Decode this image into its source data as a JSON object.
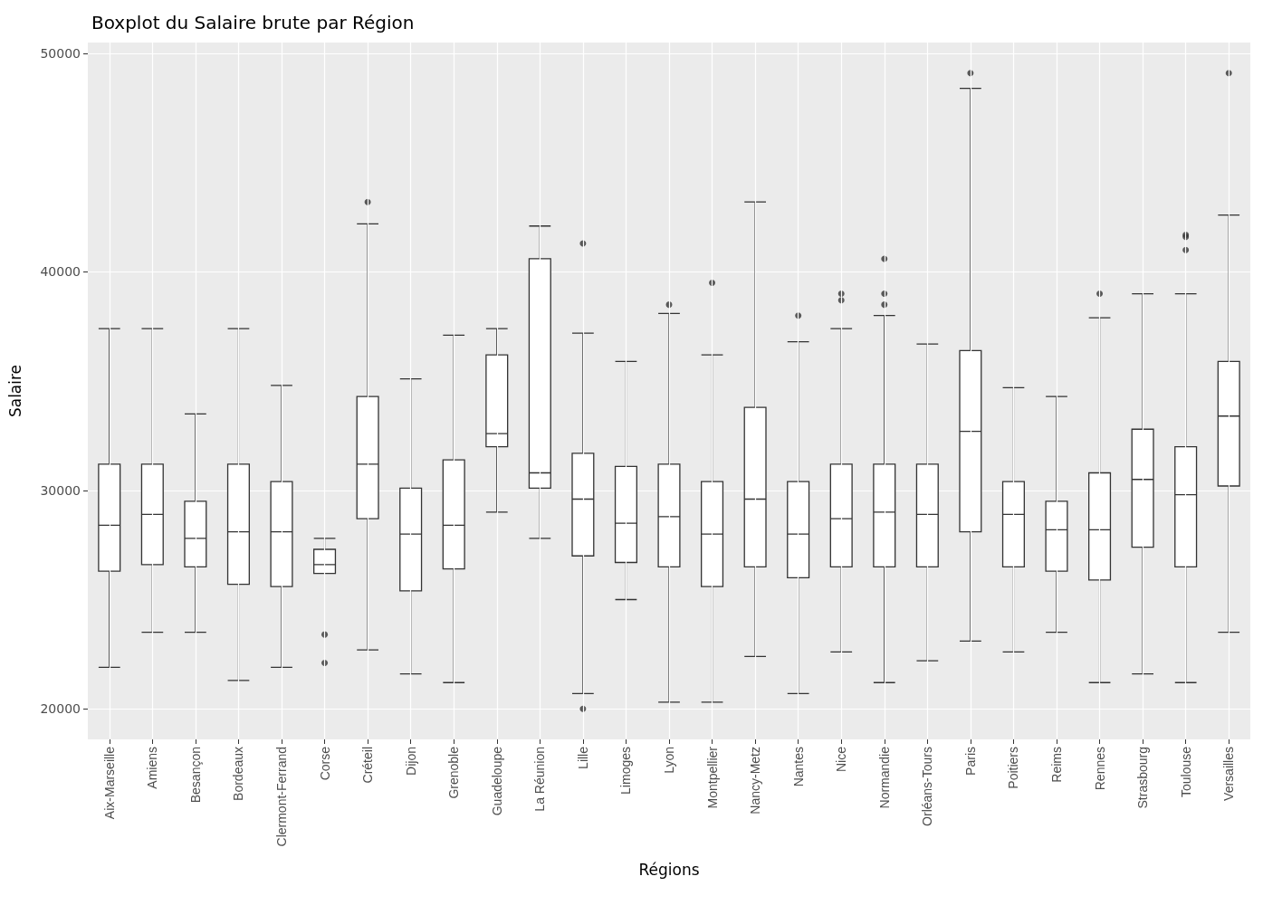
{
  "chart_data": {
    "type": "box",
    "title": "Boxplot du Salaire brute par Région",
    "xlabel": "Régions",
    "ylabel": "Salaire",
    "categories": [
      "Aix-Marseille",
      "Amiens",
      "Besançon",
      "Bordeaux",
      "Clermont-Ferrand",
      "Corse",
      "Créteil",
      "Dijon",
      "Grenoble",
      "Guadeloupe",
      "La Réunion",
      "Lille",
      "Limoges",
      "Lyon",
      "Montpellier",
      "Nancy-Metz",
      "Nantes",
      "Nice",
      "Normandie",
      "Orléans-Tours",
      "Paris",
      "Poitiers",
      "Reims",
      "Rennes",
      "Strasbourg",
      "Toulouse",
      "Versailles"
    ],
    "boxes": [
      {
        "low": 21900,
        "q1": 26300,
        "median": 28400,
        "q3": 31200,
        "high": 37400
      },
      {
        "low": 23500,
        "q1": 26600,
        "median": 28900,
        "q3": 31200,
        "high": 37400
      },
      {
        "low": 23500,
        "q1": 26500,
        "median": 27800,
        "q3": 29500,
        "high": 33500
      },
      {
        "low": 21300,
        "q1": 25700,
        "median": 28100,
        "q3": 31200,
        "high": 37400
      },
      {
        "low": 21900,
        "q1": 25600,
        "median": 28100,
        "q3": 30400,
        "high": 34800
      },
      {
        "low": 26200,
        "q1": 26200,
        "median": 26600,
        "q3": 27300,
        "high": 27800,
        "outliers": [
          23400,
          22100
        ]
      },
      {
        "low": 22700,
        "q1": 28700,
        "median": 31200,
        "q3": 34300,
        "high": 42200,
        "outliers": [
          43200
        ]
      },
      {
        "low": 21600,
        "q1": 25400,
        "median": 28000,
        "q3": 30100,
        "high": 35100
      },
      {
        "low": 21200,
        "q1": 26400,
        "median": 28400,
        "q3": 31400,
        "high": 37100
      },
      {
        "low": 29000,
        "q1": 32000,
        "median": 32600,
        "q3": 36200,
        "high": 37400
      },
      {
        "low": 27800,
        "q1": 30100,
        "median": 30800,
        "q3": 40600,
        "high": 42100
      },
      {
        "low": 20700,
        "q1": 27000,
        "median": 29600,
        "q3": 31700,
        "high": 37200,
        "outliers": [
          41300,
          20000
        ]
      },
      {
        "low": 25000,
        "q1": 26700,
        "median": 28500,
        "q3": 31100,
        "high": 35900
      },
      {
        "low": 20300,
        "q1": 26500,
        "median": 28800,
        "q3": 31200,
        "high": 38100,
        "outliers": [
          38500
        ]
      },
      {
        "low": 20300,
        "q1": 25600,
        "median": 28000,
        "q3": 30400,
        "high": 36200,
        "outliers": [
          39500
        ]
      },
      {
        "low": 22400,
        "q1": 26500,
        "median": 29600,
        "q3": 33800,
        "high": 43200
      },
      {
        "low": 20700,
        "q1": 26000,
        "median": 28000,
        "q3": 30400,
        "high": 36800,
        "outliers": [
          38000
        ]
      },
      {
        "low": 22600,
        "q1": 26500,
        "median": 28700,
        "q3": 31200,
        "high": 37400,
        "outliers": [
          39000,
          38700
        ]
      },
      {
        "low": 21200,
        "q1": 26500,
        "median": 29000,
        "q3": 31200,
        "high": 38000,
        "outliers": [
          40600,
          39000,
          38500
        ]
      },
      {
        "low": 22200,
        "q1": 26500,
        "median": 28900,
        "q3": 31200,
        "high": 36700
      },
      {
        "low": 23100,
        "q1": 28100,
        "median": 32700,
        "q3": 36400,
        "high": 48400,
        "outliers": [
          49100
        ]
      },
      {
        "low": 22600,
        "q1": 26500,
        "median": 28900,
        "q3": 30400,
        "high": 34700
      },
      {
        "low": 23500,
        "q1": 26300,
        "median": 28200,
        "q3": 29500,
        "high": 34300
      },
      {
        "low": 21200,
        "q1": 25900,
        "median": 28200,
        "q3": 30800,
        "high": 37900,
        "outliers": [
          39000
        ]
      },
      {
        "low": 21600,
        "q1": 27400,
        "median": 30500,
        "q3": 32800,
        "high": 39000
      },
      {
        "low": 21200,
        "q1": 26500,
        "median": 29800,
        "q3": 32000,
        "high": 39000,
        "outliers": [
          41700,
          41600,
          41000
        ]
      },
      {
        "low": 23500,
        "q1": 30200,
        "median": 33400,
        "q3": 35900,
        "high": 42600,
        "outliers": [
          49100
        ]
      }
    ],
    "ylim": [
      18600,
      50500
    ],
    "yticks": [
      20000,
      30000,
      40000,
      50000
    ],
    "grid": true
  }
}
